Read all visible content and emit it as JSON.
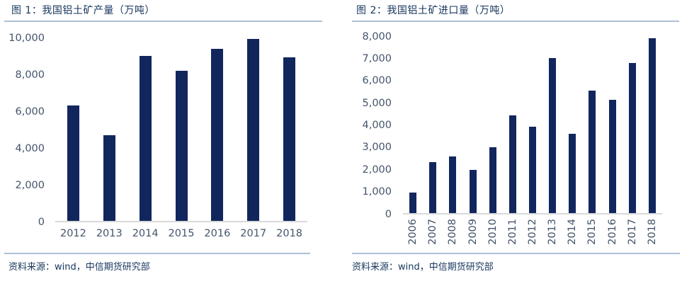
{
  "chart_data": [
    {
      "type": "bar",
      "title": "图 1：我国铝土矿产量（万吨）",
      "source_note": "资料来源：wind，中信期货研究部",
      "categories": [
        "2012",
        "2013",
        "2014",
        "2015",
        "2016",
        "2017",
        "2018"
      ],
      "values": [
        6300,
        4700,
        9050,
        8200,
        9400,
        9950,
        8950
      ],
      "xlabel": "",
      "ylabel": "",
      "ylim": [
        0,
        10000
      ],
      "ytick_step": 2000,
      "grid": false,
      "legend": "none",
      "bar_color": "#12265E",
      "x_label_rotation": 0
    },
    {
      "type": "bar",
      "title": "图 2：我国铝土矿进口量（万吨）",
      "source_note": "资料来源：wind，中信期货研究部",
      "categories": [
        "2006",
        "2007",
        "2008",
        "2009",
        "2010",
        "2011",
        "2012",
        "2013",
        "2014",
        "2015",
        "2016",
        "2017",
        "2018"
      ],
      "values": [
        930,
        2300,
        2560,
        1950,
        3000,
        4450,
        3920,
        7050,
        3600,
        5550,
        5150,
        6800,
        7950
      ],
      "xlabel": "",
      "ylabel": "",
      "ylim": [
        0,
        8000
      ],
      "ytick_step": 1000,
      "grid": false,
      "legend": "none",
      "bar_color": "#12265E",
      "x_label_rotation": -90
    }
  ],
  "colors": {
    "bar": "#12265E",
    "title_text": "#17365D",
    "axis_label_text": "#44546A",
    "rule_line": "#AEBFD5",
    "axis_line": "#D9D9D9"
  }
}
